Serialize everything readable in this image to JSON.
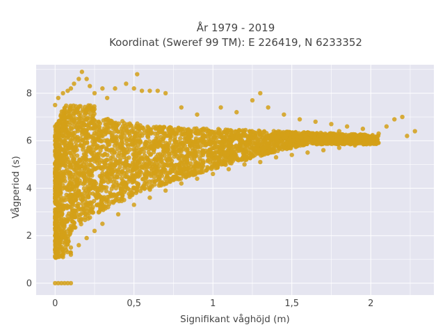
{
  "chart_data": {
    "type": "scatter",
    "title_line1": "År 1979 - 2019",
    "title_line2": "Koordinat (Sweref 99 TM): E 226419, N 6233352",
    "xlabel": "Signifikant våghöjd (m)",
    "ylabel": "Vågperiod (s)",
    "xlim": [
      -0.12,
      2.4
    ],
    "ylim": [
      -0.5,
      9.2
    ],
    "x_ticks": [
      {
        "value": 0,
        "label": "0"
      },
      {
        "value": 0.5,
        "label": "0,5"
      },
      {
        "value": 1,
        "label": "1"
      },
      {
        "value": 1.5,
        "label": "1,5"
      },
      {
        "value": 2,
        "label": "2"
      }
    ],
    "y_ticks": [
      {
        "value": 0,
        "label": "0"
      },
      {
        "value": 2,
        "label": "2"
      },
      {
        "value": 4,
        "label": "4"
      },
      {
        "value": 6,
        "label": "6"
      },
      {
        "value": 8,
        "label": "8"
      }
    ],
    "grid": true,
    "legend": "none",
    "marker_color": "#D4A017",
    "plot_bg": "#E5E5F0",
    "series": [
      {
        "values": [
          [
            0.0,
            0.0
          ],
          [
            0.02,
            0.0
          ],
          [
            0.04,
            0.0
          ],
          [
            0.06,
            0.0
          ],
          [
            0.08,
            0.0
          ],
          [
            0.1,
            0.0
          ],
          [
            0.0,
            1.1
          ],
          [
            0.05,
            1.1
          ],
          [
            0.1,
            1.2
          ],
          [
            0.0,
            2.0
          ],
          [
            0.0,
            3.0
          ],
          [
            0.0,
            4.0
          ],
          [
            0.0,
            5.0
          ],
          [
            0.0,
            6.0
          ],
          [
            0.0,
            6.6
          ],
          [
            0.0,
            7.5
          ],
          [
            0.02,
            7.8
          ],
          [
            0.05,
            8.0
          ],
          [
            0.06,
            7.3
          ],
          [
            0.08,
            8.1
          ],
          [
            0.1,
            8.2
          ],
          [
            0.12,
            8.4
          ],
          [
            0.15,
            8.6
          ],
          [
            0.17,
            8.9
          ],
          [
            0.2,
            8.6
          ],
          [
            0.22,
            8.3
          ],
          [
            0.25,
            8.0
          ],
          [
            0.3,
            8.2
          ],
          [
            0.33,
            7.8
          ],
          [
            0.38,
            8.2
          ],
          [
            0.45,
            8.4
          ],
          [
            0.5,
            8.2
          ],
          [
            0.52,
            8.8
          ],
          [
            0.55,
            8.1
          ],
          [
            0.6,
            8.1
          ],
          [
            0.65,
            8.1
          ],
          [
            0.7,
            8.0
          ],
          [
            0.8,
            7.4
          ],
          [
            0.9,
            7.1
          ],
          [
            1.05,
            7.4
          ],
          [
            1.15,
            7.2
          ],
          [
            1.25,
            7.7
          ],
          [
            1.3,
            8.0
          ],
          [
            1.35,
            7.4
          ],
          [
            1.45,
            7.1
          ],
          [
            1.55,
            6.9
          ],
          [
            1.65,
            6.8
          ],
          [
            1.75,
            6.7
          ],
          [
            1.85,
            6.6
          ],
          [
            1.95,
            6.5
          ],
          [
            2.05,
            6.3
          ],
          [
            2.1,
            6.6
          ],
          [
            2.15,
            6.9
          ],
          [
            2.2,
            7.0
          ],
          [
            2.23,
            6.2
          ],
          [
            2.28,
            6.4
          ],
          [
            2.0,
            6.0
          ],
          [
            1.8,
            6.4
          ],
          [
            0.05,
            1.3
          ],
          [
            0.1,
            1.5
          ],
          [
            0.15,
            1.6
          ],
          [
            0.2,
            1.9
          ],
          [
            0.25,
            2.2
          ],
          [
            0.3,
            2.5
          ],
          [
            0.4,
            2.9
          ],
          [
            0.5,
            3.3
          ],
          [
            0.6,
            3.6
          ],
          [
            0.7,
            3.9
          ],
          [
            0.8,
            4.2
          ],
          [
            0.9,
            4.4
          ],
          [
            1.0,
            4.6
          ],
          [
            1.1,
            4.8
          ],
          [
            1.2,
            5.0
          ],
          [
            1.3,
            5.1
          ],
          [
            1.4,
            5.3
          ],
          [
            1.5,
            5.4
          ],
          [
            1.6,
            5.5
          ],
          [
            1.7,
            5.6
          ],
          [
            1.8,
            5.7
          ],
          [
            1.9,
            5.8
          ]
        ]
      }
    ]
  }
}
